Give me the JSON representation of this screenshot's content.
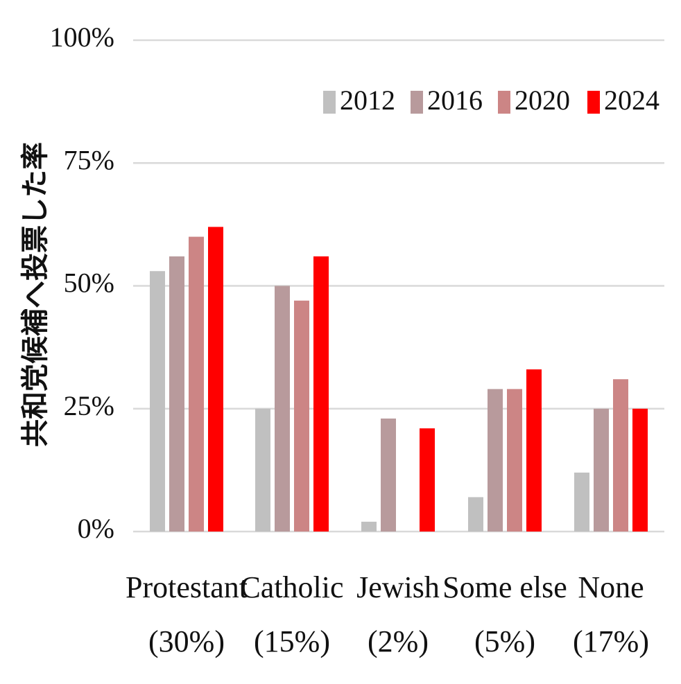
{
  "chart_data": {
    "type": "bar",
    "ylabel": "共和党候補へ投票した率",
    "categories": [
      {
        "name": "Protestant",
        "share": "(30%)"
      },
      {
        "name": "Catholic",
        "share": "(15%)"
      },
      {
        "name": "Jewish",
        "share": "(2%)"
      },
      {
        "name": "Some else",
        "share": "(5%)"
      },
      {
        "name": "None",
        "share": "(17%)"
      }
    ],
    "series": [
      {
        "name": "2012",
        "color": "#c0c0c0",
        "values": [
          53,
          25,
          2,
          7,
          12
        ]
      },
      {
        "name": "2016",
        "color": "#b89a9c",
        "values": [
          56,
          50,
          23,
          29,
          25
        ]
      },
      {
        "name": "2020",
        "color": "#cc8585",
        "values": [
          60,
          47,
          null,
          29,
          31
        ]
      },
      {
        "name": "2024",
        "color": "#ff0000",
        "values": [
          62,
          56,
          21,
          33,
          25
        ]
      }
    ],
    "ylim": [
      0,
      100
    ],
    "yticks": [
      "0%",
      "25%",
      "50%",
      "75%",
      "100%"
    ],
    "ytick_values": [
      0,
      25,
      50,
      75,
      100
    ],
    "grid": true,
    "legend_position": "top-right"
  }
}
